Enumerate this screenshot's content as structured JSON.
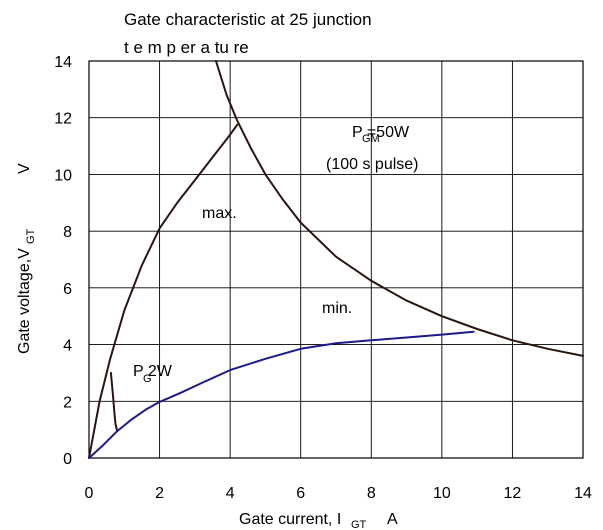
{
  "chart_data": {
    "type": "line",
    "title_line1": "Gate characteristic at 25    junction",
    "title_line2": "t e m p er a tu re",
    "xlabel": {
      "main": "Gate current, I",
      "sub": "GT",
      "unit": "A"
    },
    "ylabel": {
      "main": "Gate voltage,V",
      "sub": "GT",
      "unit": "V"
    },
    "xlim": [
      0,
      14
    ],
    "ylim": [
      0,
      14
    ],
    "x_ticks": [
      0,
      2,
      4,
      6,
      8,
      10,
      12,
      14
    ],
    "y_ticks": [
      0,
      2,
      4,
      6,
      8,
      10,
      12,
      14
    ],
    "grid": true,
    "annotations": {
      "pgm": "P  =50W",
      "pgm_sub": "GM",
      "pulse": "(100   s pulse)",
      "pg": "P  2W",
      "pg_sub": "G",
      "max": "max.",
      "min": "min."
    },
    "colors": {
      "black_curves": "#2a1510",
      "blue_curve": "#1c1a8c",
      "grid": "#000000"
    },
    "series": [
      {
        "id": "max",
        "color": "#2a1510",
        "x": [
          0,
          0.3,
          0.6,
          1.0,
          1.5,
          2.0,
          2.5,
          3.0,
          3.5,
          4.0,
          4.2
        ],
        "y": [
          0,
          2.0,
          3.5,
          5.2,
          6.8,
          8.1,
          9.0,
          9.8,
          10.6,
          11.4,
          11.75
        ]
      },
      {
        "id": "pgm_hyperbola",
        "color": "#2a1510",
        "x": [
          3.6,
          3.9,
          4.2,
          4.6,
          5.0,
          5.5,
          6.0,
          7.0,
          8.0,
          9.0,
          10.0,
          11.0,
          12.0,
          13.0,
          14.0
        ],
        "y": [
          14.0,
          12.8,
          11.9,
          10.9,
          10.0,
          9.1,
          8.3,
          7.1,
          6.25,
          5.55,
          5.0,
          4.55,
          4.15,
          3.85,
          3.6
        ]
      },
      {
        "id": "pg_curve",
        "color": "#2a1510",
        "x": [
          0.62,
          0.68,
          0.72,
          0.75,
          0.8
        ],
        "y": [
          3.0,
          2.2,
          1.6,
          1.2,
          0.95
        ]
      },
      {
        "id": "min",
        "color": "#1c1a8c",
        "x": [
          0,
          0.4,
          0.8,
          1.2,
          1.6,
          2.0,
          2.6,
          3.2,
          4.0,
          5.0,
          6.0,
          7.0,
          8.0,
          9.0,
          10.0,
          10.9
        ],
        "y": [
          0,
          0.45,
          0.95,
          1.35,
          1.7,
          1.98,
          2.3,
          2.65,
          3.1,
          3.5,
          3.85,
          4.05,
          4.15,
          4.25,
          4.35,
          4.45
        ]
      }
    ]
  }
}
